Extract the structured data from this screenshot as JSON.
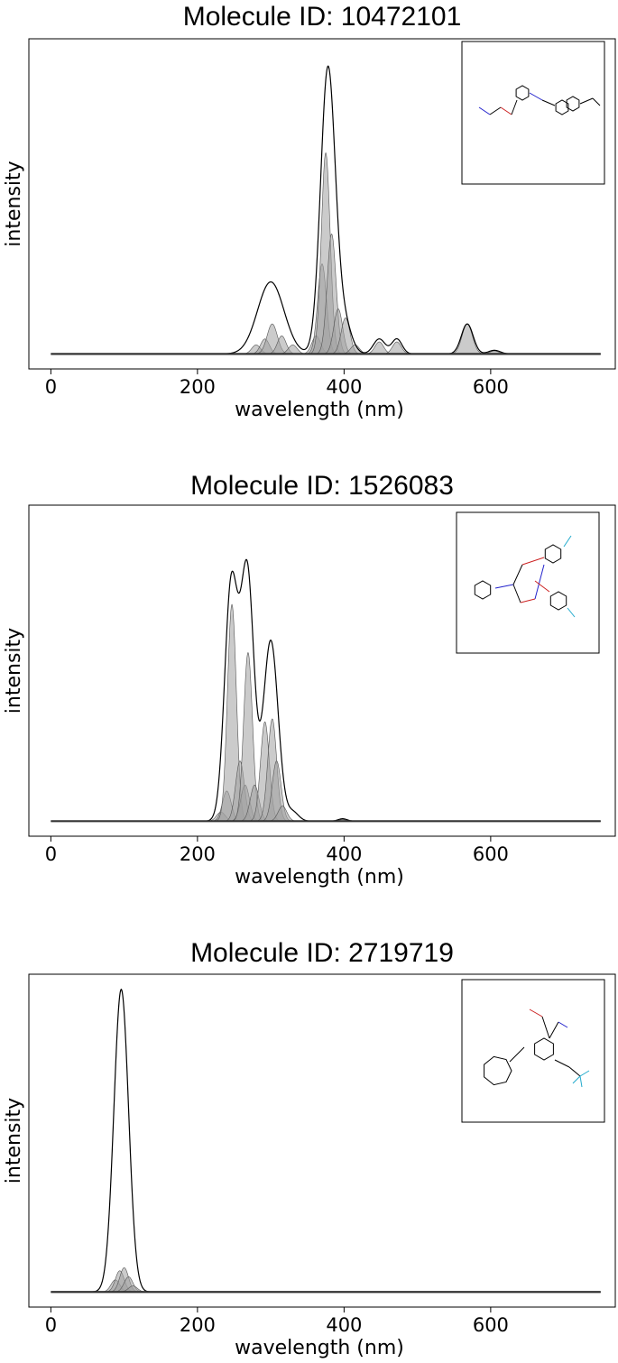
{
  "chart_data": [
    {
      "type": "area",
      "title": "Molecule ID: 10472101",
      "xlabel": "wavelength (nm)",
      "ylabel": "intensity",
      "xlim": [
        -30,
        770
      ],
      "ylim": [
        -0.05,
        1.05
      ],
      "xticks": [
        0,
        200,
        400,
        600
      ],
      "grid": false,
      "legend": "none",
      "inset": "molecule-structure top-right",
      "fill_color": "#a0a0a0",
      "line_color": "#000000",
      "envelope": [
        {
          "center": 300,
          "width": 18,
          "amp": 0.24
        },
        {
          "center": 378,
          "width": 10,
          "amp": 0.95
        },
        {
          "center": 400,
          "width": 10,
          "amp": 0.1
        },
        {
          "center": 448,
          "width": 8,
          "amp": 0.05
        },
        {
          "center": 472,
          "width": 7,
          "amp": 0.05
        },
        {
          "center": 568,
          "width": 8,
          "amp": 0.1
        },
        {
          "center": 605,
          "width": 8,
          "amp": 0.012
        }
      ],
      "peaks": [
        {
          "center": 280,
          "width": 6,
          "amp": 0.03
        },
        {
          "center": 292,
          "width": 6,
          "amp": 0.05
        },
        {
          "center": 302,
          "width": 7,
          "amp": 0.1
        },
        {
          "center": 315,
          "width": 6,
          "amp": 0.06
        },
        {
          "center": 330,
          "width": 6,
          "amp": 0.03
        },
        {
          "center": 362,
          "width": 6,
          "amp": 0.06
        },
        {
          "center": 370,
          "width": 6,
          "amp": 0.3
        },
        {
          "center": 375,
          "width": 6,
          "amp": 0.67
        },
        {
          "center": 383,
          "width": 6,
          "amp": 0.4
        },
        {
          "center": 392,
          "width": 6,
          "amp": 0.15
        },
        {
          "center": 402,
          "width": 6,
          "amp": 0.12
        },
        {
          "center": 415,
          "width": 6,
          "amp": 0.03
        },
        {
          "center": 448,
          "width": 6,
          "amp": 0.04
        },
        {
          "center": 472,
          "width": 6,
          "amp": 0.04
        },
        {
          "center": 568,
          "width": 7,
          "amp": 0.1
        },
        {
          "center": 605,
          "width": 6,
          "amp": 0.01
        }
      ]
    },
    {
      "type": "area",
      "title": "Molecule ID: 1526083",
      "xlabel": "wavelength (nm)",
      "ylabel": "intensity",
      "xlim": [
        -30,
        770
      ],
      "ylim": [
        -0.05,
        1.05
      ],
      "xticks": [
        0,
        200,
        400,
        600
      ],
      "grid": false,
      "legend": "none",
      "inset": "molecule-structure top-right",
      "fill_color": "#a0a0a0",
      "line_color": "#000000",
      "envelope": [
        {
          "center": 246,
          "width": 9,
          "amp": 0.78
        },
        {
          "center": 268,
          "width": 9,
          "amp": 0.82
        },
        {
          "center": 300,
          "width": 10,
          "amp": 0.6
        },
        {
          "center": 330,
          "width": 8,
          "amp": 0.03
        },
        {
          "center": 398,
          "width": 6,
          "amp": 0.008
        }
      ],
      "peaks": [
        {
          "center": 232,
          "width": 6,
          "amp": 0.03
        },
        {
          "center": 240,
          "width": 6,
          "amp": 0.1
        },
        {
          "center": 247,
          "width": 6,
          "amp": 0.72
        },
        {
          "center": 258,
          "width": 6,
          "amp": 0.2
        },
        {
          "center": 265,
          "width": 6,
          "amp": 0.12
        },
        {
          "center": 269,
          "width": 6,
          "amp": 0.56
        },
        {
          "center": 278,
          "width": 6,
          "amp": 0.12
        },
        {
          "center": 292,
          "width": 6,
          "amp": 0.33
        },
        {
          "center": 302,
          "width": 6,
          "amp": 0.34
        },
        {
          "center": 308,
          "width": 6,
          "amp": 0.2
        },
        {
          "center": 316,
          "width": 6,
          "amp": 0.05
        },
        {
          "center": 398,
          "width": 5,
          "amp": 0.005
        }
      ]
    },
    {
      "type": "area",
      "title": "Molecule ID: 2719719",
      "xlabel": "wavelength (nm)",
      "ylabel": "intensity",
      "xlim": [
        -30,
        770
      ],
      "ylim": [
        -0.05,
        1.05
      ],
      "xticks": [
        0,
        200,
        400,
        600
      ],
      "grid": false,
      "legend": "none",
      "inset": "molecule-structure top-right",
      "fill_color": "#a0a0a0",
      "line_color": "#000000",
      "envelope": [
        {
          "center": 96,
          "width": 10,
          "amp": 1.0
        }
      ],
      "peaks": [
        {
          "center": 88,
          "width": 6,
          "amp": 0.04
        },
        {
          "center": 94,
          "width": 6,
          "amp": 0.07
        },
        {
          "center": 100,
          "width": 6,
          "amp": 0.08
        },
        {
          "center": 106,
          "width": 6,
          "amp": 0.05
        },
        {
          "center": 112,
          "width": 6,
          "amp": 0.02
        }
      ]
    }
  ]
}
